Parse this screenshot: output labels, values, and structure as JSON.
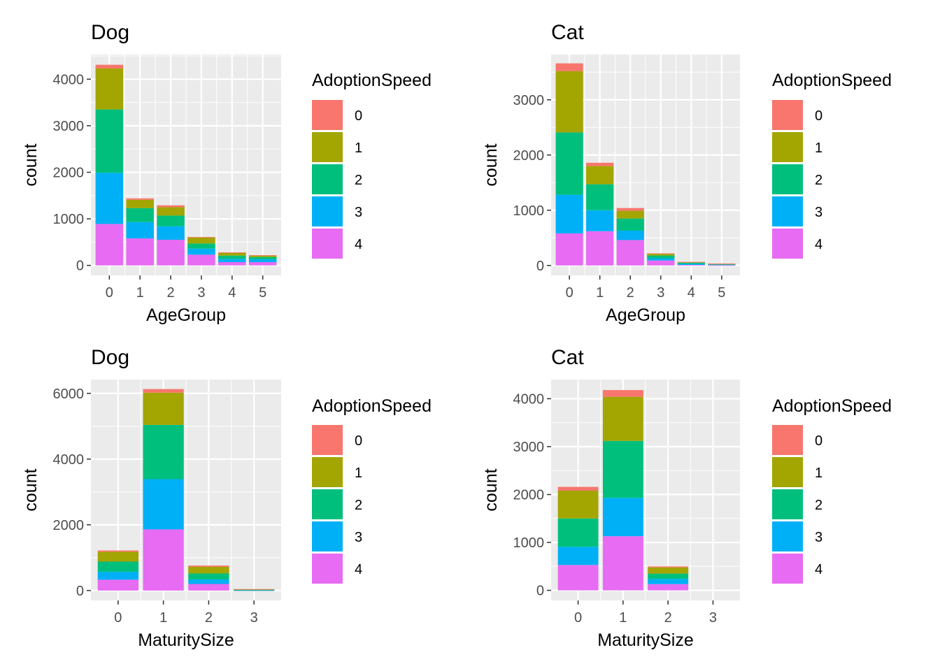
{
  "chart_data": [
    {
      "type": "bar",
      "stacked": true,
      "title": "Dog",
      "xlabel": "AgeGroup",
      "ylabel": "count",
      "categories": [
        "0",
        "1",
        "2",
        "3",
        "4",
        "5"
      ],
      "yticks": [
        0,
        1000,
        2000,
        3000,
        4000
      ],
      "ylim": [
        -215,
        4530
      ],
      "grid": true,
      "legend": {
        "title": "AdoptionSpeed",
        "placement": "right"
      },
      "series": [
        {
          "name": "4",
          "values": [
            890,
            580,
            550,
            230,
            70,
            70
          ]
        },
        {
          "name": "3",
          "values": [
            1100,
            350,
            290,
            130,
            70,
            60
          ]
        },
        {
          "name": "2",
          "values": [
            1360,
            300,
            230,
            110,
            70,
            50
          ]
        },
        {
          "name": "1",
          "values": [
            880,
            180,
            180,
            130,
            60,
            30
          ]
        },
        {
          "name": "0",
          "values": [
            80,
            30,
            40,
            10,
            10,
            10
          ]
        }
      ]
    },
    {
      "type": "bar",
      "stacked": true,
      "title": "Cat",
      "xlabel": "AgeGroup",
      "ylabel": "count",
      "categories": [
        "0",
        "1",
        "2",
        "3",
        "4",
        "5"
      ],
      "yticks": [
        0,
        1000,
        2000,
        3000
      ],
      "ylim": [
        -180,
        3820
      ],
      "grid": true,
      "legend": {
        "title": "AdoptionSpeed",
        "placement": "right"
      },
      "series": [
        {
          "name": "4",
          "values": [
            580,
            620,
            460,
            90,
            10,
            5
          ]
        },
        {
          "name": "3",
          "values": [
            700,
            380,
            170,
            40,
            20,
            10
          ]
        },
        {
          "name": "2",
          "values": [
            1130,
            470,
            220,
            50,
            20,
            10
          ]
        },
        {
          "name": "1",
          "values": [
            1110,
            330,
            140,
            30,
            10,
            5
          ]
        },
        {
          "name": "0",
          "values": [
            140,
            60,
            50,
            10,
            5,
            5
          ]
        }
      ]
    },
    {
      "type": "bar",
      "stacked": true,
      "title": "Dog",
      "xlabel": "MaturitySize",
      "ylabel": "count",
      "categories": [
        "0",
        "1",
        "2",
        "3"
      ],
      "yticks": [
        0,
        2000,
        4000,
        6000
      ],
      "ylim": [
        -300,
        6420
      ],
      "grid": true,
      "legend": {
        "title": "AdoptionSpeed",
        "placement": "right"
      },
      "series": [
        {
          "name": "4",
          "values": [
            330,
            1860,
            200,
            5
          ]
        },
        {
          "name": "3",
          "values": [
            240,
            1530,
            140,
            5
          ]
        },
        {
          "name": "2",
          "values": [
            310,
            1650,
            180,
            10
          ]
        },
        {
          "name": "1",
          "values": [
            300,
            980,
            200,
            20
          ]
        },
        {
          "name": "0",
          "values": [
            40,
            110,
            40,
            5
          ]
        }
      ]
    },
    {
      "type": "bar",
      "stacked": true,
      "title": "Cat",
      "xlabel": "MaturitySize",
      "ylabel": "count",
      "categories": [
        "0",
        "1",
        "2",
        "3"
      ],
      "yticks": [
        0,
        1000,
        2000,
        3000,
        4000
      ],
      "ylim": [
        -210,
        4400
      ],
      "grid": true,
      "legend": {
        "title": "AdoptionSpeed",
        "placement": "right"
      },
      "series": [
        {
          "name": "4",
          "values": [
            530,
            1130,
            130,
            0
          ]
        },
        {
          "name": "3",
          "values": [
            380,
            800,
            110,
            0
          ]
        },
        {
          "name": "2",
          "values": [
            590,
            1190,
            110,
            0
          ]
        },
        {
          "name": "1",
          "values": [
            580,
            920,
            130,
            0
          ]
        },
        {
          "name": "0",
          "values": [
            80,
            140,
            20,
            0
          ]
        }
      ]
    }
  ],
  "legend_colors": {
    "0": "#F8766D",
    "1": "#A3A500",
    "2": "#00BF7D",
    "3": "#00B0F6",
    "4": "#E76BF3"
  },
  "legend_order": [
    "0",
    "1",
    "2",
    "3",
    "4"
  ],
  "panel_background": "#EBEBEB",
  "grid_color": "#FFFFFF"
}
